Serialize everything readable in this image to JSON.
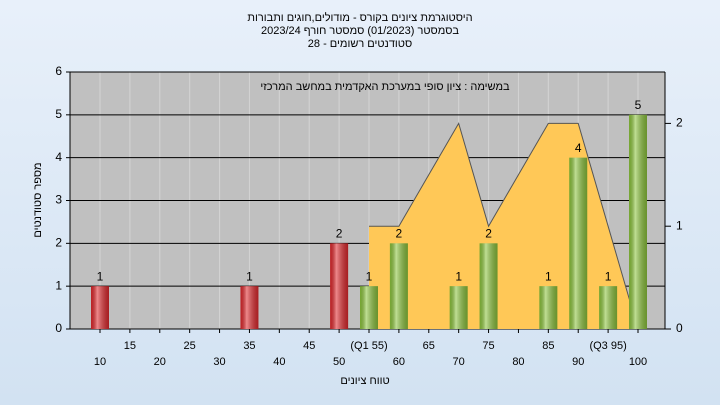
{
  "chart_data": {
    "type": "bar",
    "title": "היסטוגרמת ציונים בקורס - מודולים,חוגים ותבורות",
    "subtitle": "בסמסטר  (01/2023)  סמסטר חורף 2023/24",
    "subtitle2": "סטודנטים רשומים - 28",
    "annotation": "במשימה : ציון סופי במערכת האקדמית במחשב המרכזי",
    "ylabel": "מספר סטודנטים",
    "xlabel": "טווח ציונים",
    "categories": [
      "10",
      "15",
      "20",
      "25",
      "30",
      "35",
      "40",
      "45",
      "50",
      "(Q1 55)",
      "60",
      "65",
      "70",
      "75",
      "80",
      "85",
      "90",
      "(Q3 95)",
      "100"
    ],
    "series": [
      {
        "values": [
          1,
          0,
          0,
          0,
          0,
          1,
          0,
          0,
          2,
          1,
          2,
          0,
          1,
          2,
          0,
          1,
          4,
          1,
          5
        ],
        "colors": [
          "#e0282c",
          "#e0282c",
          "#e0282c",
          "#e0282c",
          "#e0282c",
          "#e0282c",
          "#e0282c",
          "#e0282c",
          "#e0282c",
          "#8cc43c",
          "#8cc43c",
          "#8cc43c",
          "#8cc43c",
          "#8cc43c",
          "#8cc43c",
          "#8cc43c",
          "#8cc43c",
          "#8cc43c",
          "#8cc43c"
        ]
      },
      {
        "type": "area",
        "axis": "y2",
        "color": "#ffc857",
        "values": [
          null,
          null,
          null,
          null,
          null,
          null,
          null,
          null,
          null,
          1,
          1,
          1.5,
          2,
          1,
          1.5,
          2,
          2,
          1,
          0
        ]
      }
    ],
    "ylim": [
      0,
      6
    ],
    "yticks": [
      0,
      1,
      2,
      3,
      4,
      5,
      6
    ],
    "y2lim": [
      0,
      2.5
    ],
    "y2ticks": [
      0,
      1,
      2
    ],
    "grid": true
  }
}
